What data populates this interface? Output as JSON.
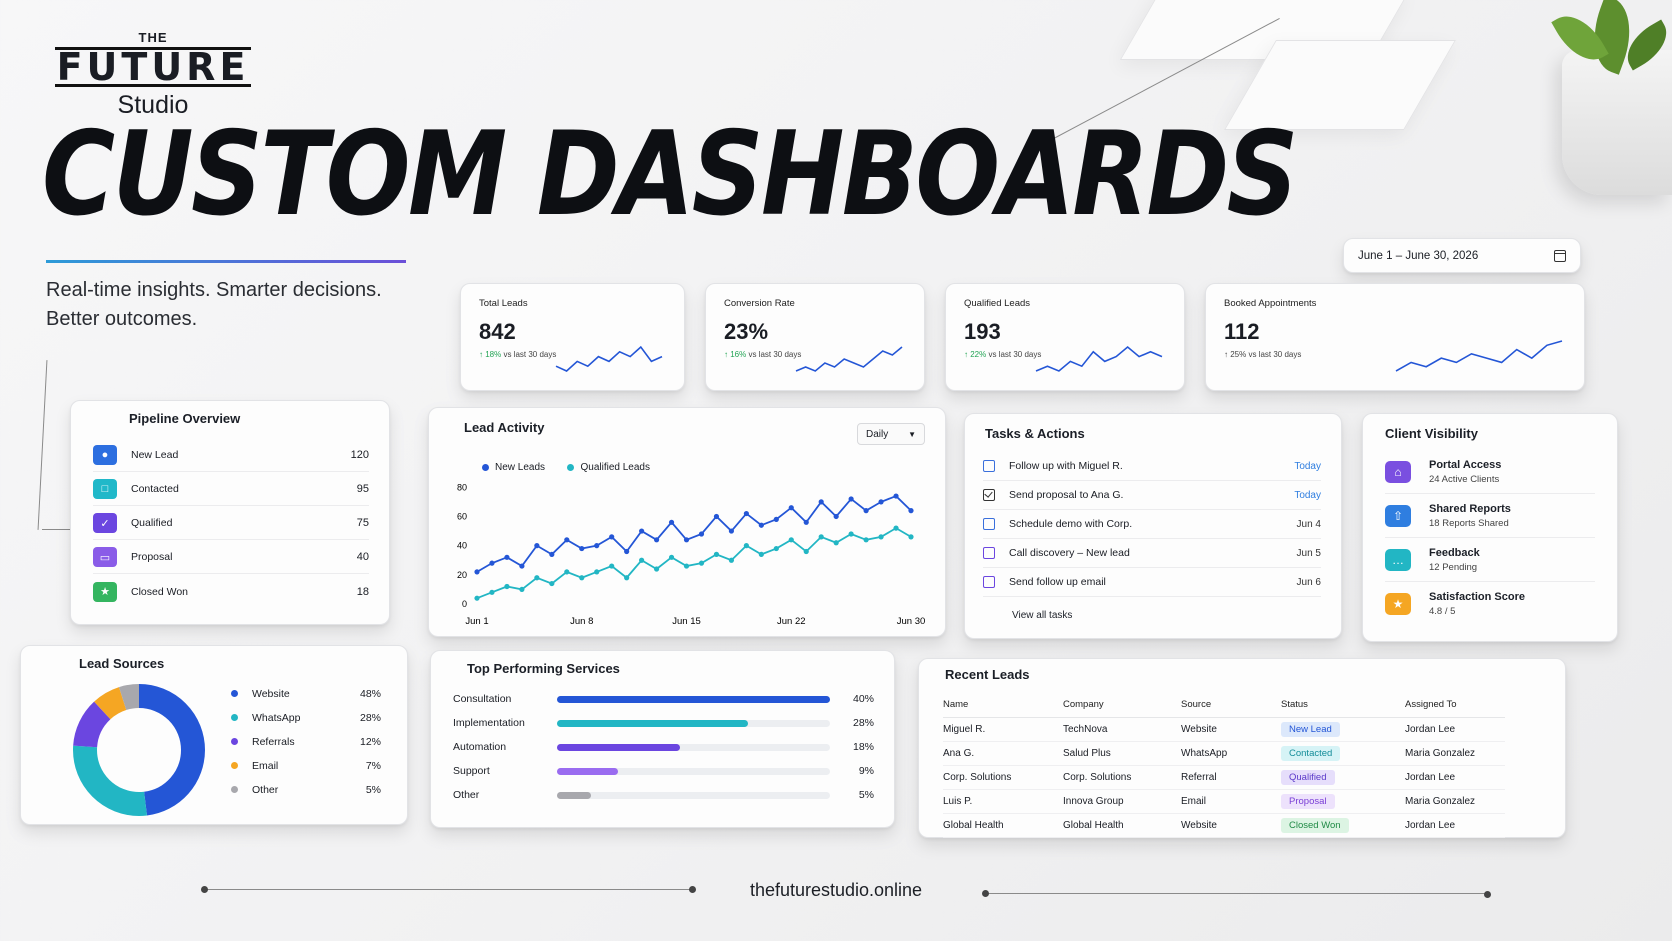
{
  "brand": {
    "the": "THE",
    "future": "FUTURE",
    "studio": "Studio"
  },
  "headline": "CUSTOM DASHBOARDS",
  "tagline": {
    "line1": "Real-time insights. Smarter decisions.",
    "line2": "Better outcomes."
  },
  "date_range": "June 1 – June 30, 2026",
  "kpis": [
    {
      "label": "Total Leads",
      "value": "842",
      "delta": "↑ 18%",
      "delta_rest": " vs last 30 days",
      "spark": [
        3,
        2,
        4,
        3,
        5,
        4,
        6,
        5,
        7,
        4,
        5
      ]
    },
    {
      "label": "Conversion Rate",
      "value": "23%",
      "delta": "↑ 16%",
      "delta_rest": " vs last 30 days",
      "spark": [
        2,
        3,
        2,
        4,
        3,
        5,
        4,
        3,
        5,
        7,
        6,
        8
      ]
    },
    {
      "label": "Qualified Leads",
      "value": "193",
      "delta": "↑ 22%",
      "delta_rest": " vs last 30 days",
      "spark": [
        2,
        3,
        2,
        4,
        3,
        6,
        4,
        5,
        7,
        5,
        6,
        5
      ]
    },
    {
      "label": "Booked Appointments",
      "value": "112",
      "delta": "↑ 25%",
      "delta_rest": " vs last 30 days",
      "spark": [
        2,
        4,
        3,
        5,
        4,
        6,
        5,
        4,
        7,
        5,
        8,
        9
      ]
    }
  ],
  "pipeline": {
    "title": "Pipeline Overview",
    "rows": [
      {
        "label": "New Lead",
        "value": "120",
        "icon": "user-icon",
        "color": "#2d6fe0"
      },
      {
        "label": "Contacted",
        "value": "95",
        "icon": "chat-icon",
        "color": "#20b8c9"
      },
      {
        "label": "Qualified",
        "value": "75",
        "icon": "check-icon",
        "color": "#6b46e0"
      },
      {
        "label": "Proposal",
        "value": "40",
        "icon": "monitor-icon",
        "color": "#8a5ce8"
      },
      {
        "label": "Closed Won",
        "value": "18",
        "icon": "trophy-icon",
        "color": "#34b560"
      }
    ]
  },
  "lead_activity": {
    "title": "Lead Activity",
    "dropdown": "Daily",
    "legend": [
      "New Leads",
      "Qualified Leads"
    ]
  },
  "chart_data": {
    "type": "line",
    "title": "Lead Activity",
    "x": [
      "Jun 1",
      "Jun 2",
      "Jun 3",
      "Jun 4",
      "Jun 5",
      "Jun 6",
      "Jun 7",
      "Jun 8",
      "Jun 9",
      "Jun 10",
      "Jun 11",
      "Jun 12",
      "Jun 13",
      "Jun 14",
      "Jun 15",
      "Jun 16",
      "Jun 17",
      "Jun 18",
      "Jun 19",
      "Jun 20",
      "Jun 21",
      "Jun 22",
      "Jun 23",
      "Jun 24",
      "Jun 25",
      "Jun 26",
      "Jun 27",
      "Jun 28",
      "Jun 29",
      "Jun 30"
    ],
    "xticks": [
      "Jun 1",
      "Jun 8",
      "Jun 15",
      "Jun 22",
      "Jun 30"
    ],
    "yticks": [
      0,
      20,
      40,
      60,
      80
    ],
    "ylim": [
      0,
      85
    ],
    "grid": false,
    "legend_position": "top-left",
    "series": [
      {
        "name": "New Leads",
        "color": "#2456d6",
        "values": [
          22,
          28,
          32,
          26,
          40,
          34,
          44,
          38,
          40,
          46,
          36,
          50,
          44,
          56,
          44,
          48,
          60,
          50,
          62,
          54,
          58,
          66,
          56,
          70,
          60,
          72,
          64,
          70,
          74,
          64
        ]
      },
      {
        "name": "Qualified Leads",
        "color": "#22b6c4",
        "values": [
          4,
          8,
          12,
          10,
          18,
          14,
          22,
          18,
          22,
          26,
          18,
          30,
          24,
          32,
          26,
          28,
          34,
          30,
          40,
          34,
          38,
          44,
          36,
          46,
          42,
          48,
          44,
          46,
          52,
          46
        ]
      }
    ]
  },
  "tasks": {
    "title": "Tasks & Actions",
    "items": [
      {
        "label": "Follow up with Miguel R.",
        "due": "Today",
        "today": true,
        "done": false
      },
      {
        "label": "Send proposal to Ana G.",
        "due": "Today",
        "today": true,
        "done": true
      },
      {
        "label": "Schedule demo with Corp.",
        "due": "Jun 4",
        "today": false,
        "done": false
      },
      {
        "label": "Call discovery – New lead",
        "due": "Jun 5",
        "today": false,
        "done": false
      },
      {
        "label": "Send follow up email",
        "due": "Jun 6",
        "today": false,
        "done": false
      }
    ],
    "view_all": "View all tasks"
  },
  "client_visibility": {
    "title": "Client Visibility",
    "items": [
      {
        "title": "Portal Access",
        "sub": "24 Active Clients",
        "icon": "home-icon",
        "color": "#7a4fe0"
      },
      {
        "title": "Shared Reports",
        "sub": "18 Reports Shared",
        "icon": "upload-icon",
        "color": "#2f7ee0"
      },
      {
        "title": "Feedback",
        "sub": "12 Pending",
        "icon": "speech-bubble-icon",
        "color": "#22b6c4"
      },
      {
        "title": "Satisfaction Score",
        "sub": "4.8 / 5",
        "icon": "star-icon",
        "color": "#f5a623"
      }
    ]
  },
  "lead_sources": {
    "title": "Lead Sources",
    "items": [
      {
        "label": "Website",
        "value": "48%",
        "pct": 48,
        "color": "#2456d6"
      },
      {
        "label": "WhatsApp",
        "value": "28%",
        "pct": 28,
        "color": "#22b6c4"
      },
      {
        "label": "Referrals",
        "value": "12%",
        "pct": 12,
        "color": "#6b46e0"
      },
      {
        "label": "Email",
        "value": "7%",
        "pct": 7,
        "color": "#f5a623"
      },
      {
        "label": "Other",
        "value": "5%",
        "pct": 5,
        "color": "#a8a8ad"
      }
    ]
  },
  "services": {
    "title": "Top Performing Services",
    "items": [
      {
        "label": "Consultation",
        "value": "40%",
        "pct": 40,
        "color": "#2456d6"
      },
      {
        "label": "Implementation",
        "value": "28%",
        "pct": 28,
        "color": "#22b6c4"
      },
      {
        "label": "Automation",
        "value": "18%",
        "pct": 18,
        "color": "#6b46e0"
      },
      {
        "label": "Support",
        "value": "9%",
        "pct": 9,
        "color": "#9a6cf0"
      },
      {
        "label": "Other",
        "value": "5%",
        "pct": 5,
        "color": "#a8a8ad"
      }
    ]
  },
  "recent_leads": {
    "title": "Recent Leads",
    "headers": [
      "Name",
      "Company",
      "Source",
      "Status",
      "Assigned To"
    ],
    "rows": [
      [
        "Miguel R.",
        "TechNova",
        "Website",
        "New Lead",
        "Jordan Lee"
      ],
      [
        "Ana G.",
        "Salud Plus",
        "WhatsApp",
        "Contacted",
        "Maria Gonzalez"
      ],
      [
        "Corp. Solutions",
        "Corp. Solutions",
        "Referral",
        "Qualified",
        "Jordan Lee"
      ],
      [
        "Luis P.",
        "Innova Group",
        "Email",
        "Proposal",
        "Maria Gonzalez"
      ],
      [
        "Global Health",
        "Global Health",
        "Website",
        "Closed Won",
        "Jordan Lee"
      ]
    ],
    "status_colors": {
      "New Lead": [
        "#dce8fb",
        "#2456d6"
      ],
      "Contacted": [
        "#d6f3f6",
        "#148d99"
      ],
      "Qualified": [
        "#e6defb",
        "#5b39c9"
      ],
      "Proposal": [
        "#ede2fc",
        "#7a3fd6"
      ],
      "Closed Won": [
        "#dcf4e3",
        "#1f8a45"
      ]
    }
  },
  "footer_url": "thefuturestudio.online"
}
